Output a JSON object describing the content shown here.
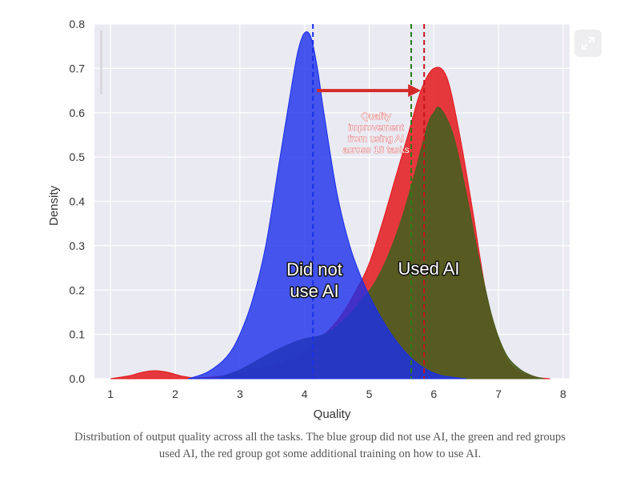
{
  "chart_data": {
    "type": "area",
    "xlabel": "Quality",
    "ylabel": "Density",
    "xlim": [
      0.75,
      8.1
    ],
    "ylim": [
      0,
      0.8
    ],
    "xticks": [
      "1",
      "2",
      "3",
      "4",
      "5",
      "6",
      "7",
      "8"
    ],
    "yticks": [
      "0.0",
      "0.1",
      "0.2",
      "0.3",
      "0.4",
      "0.5",
      "0.6",
      "0.7",
      "0.8"
    ],
    "grid": true,
    "background": "#eaeaf2",
    "series": [
      {
        "name": "",
        "color": "#e3191c",
        "mean": 5.85,
        "x": [
          1.0,
          1.3,
          1.5,
          1.7,
          1.9,
          2.1,
          2.3,
          2.6,
          3.0,
          3.5,
          4.0,
          4.5,
          4.8,
          5.0,
          5.2,
          5.4,
          5.6,
          5.8,
          6.0,
          6.2,
          6.4,
          6.6,
          6.8,
          7.0,
          7.2,
          7.5,
          7.8
        ],
        "values": [
          0.0,
          0.007,
          0.015,
          0.018,
          0.014,
          0.006,
          0.002,
          0.004,
          0.012,
          0.03,
          0.06,
          0.13,
          0.2,
          0.26,
          0.35,
          0.45,
          0.55,
          0.65,
          0.7,
          0.68,
          0.55,
          0.38,
          0.2,
          0.09,
          0.03,
          0.006,
          0.0
        ]
      },
      {
        "name": "",
        "color": "#4b5e1f",
        "mean": 5.65,
        "x": [
          2.6,
          3.0,
          3.5,
          3.8,
          4.0,
          4.3,
          4.6,
          4.9,
          5.1,
          5.3,
          5.5,
          5.7,
          5.9,
          6.0,
          6.1,
          6.3,
          6.5,
          6.7,
          6.9,
          7.1,
          7.3,
          7.5,
          7.7
        ],
        "values": [
          0.0,
          0.02,
          0.06,
          0.08,
          0.09,
          0.1,
          0.13,
          0.18,
          0.22,
          0.28,
          0.36,
          0.46,
          0.57,
          0.6,
          0.61,
          0.55,
          0.42,
          0.27,
          0.14,
          0.06,
          0.025,
          0.008,
          0.0
        ]
      },
      {
        "name": "",
        "color": "#1a2eea",
        "mean": 4.13,
        "x": [
          2.2,
          2.5,
          2.8,
          3.0,
          3.2,
          3.4,
          3.6,
          3.8,
          3.9,
          4.0,
          4.1,
          4.2,
          4.3,
          4.5,
          4.7,
          4.9,
          5.1,
          5.3,
          5.5,
          5.7,
          5.9,
          6.1,
          6.3,
          6.5
        ],
        "values": [
          0.0,
          0.015,
          0.05,
          0.1,
          0.18,
          0.3,
          0.48,
          0.66,
          0.74,
          0.78,
          0.77,
          0.7,
          0.6,
          0.42,
          0.3,
          0.22,
          0.16,
          0.11,
          0.07,
          0.04,
          0.02,
          0.008,
          0.003,
          0.0
        ]
      }
    ],
    "annotations": {
      "blue_label": [
        "Did not",
        "use AI"
      ],
      "green_label": "Used AI",
      "arrow_note": [
        "Quality",
        "improvement",
        "from using AI",
        "across 18 tasks"
      ],
      "arrow_from": [
        4.13,
        0.65
      ],
      "arrow_to": [
        5.85,
        0.65
      ]
    }
  },
  "caption": "Distribution of output quality across all the tasks. The blue group did not use AI, the green and red groups used AI, the red group got some additional training on how to use AI.",
  "expand_icon": "expand-arrows-icon"
}
